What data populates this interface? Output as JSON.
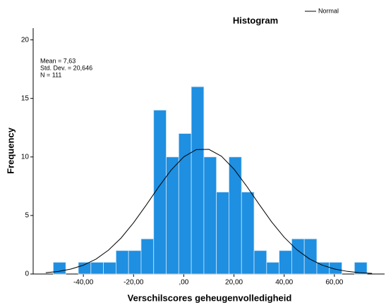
{
  "chart_data": {
    "type": "histogram",
    "title": "Histogram",
    "xlabel": "Verschilscores geheugenvolledigheid",
    "ylabel": "Frequency",
    "bins": [
      -52,
      -47,
      -42,
      -37,
      -32,
      -27,
      -22,
      -17,
      -12,
      -7,
      -2,
      3,
      8,
      13,
      18,
      23,
      28,
      33,
      38,
      43,
      48,
      53,
      58,
      63,
      68,
      73
    ],
    "counts": [
      1,
      0,
      1,
      1,
      1,
      2,
      2,
      3,
      14,
      10,
      12,
      16,
      10,
      7,
      10,
      7,
      2,
      1,
      2,
      3,
      3,
      1,
      1,
      0,
      1
    ],
    "color": "#1e8fe1",
    "normal_curve": {
      "name": "Normal",
      "color": "#000000",
      "x": [
        -55,
        -50,
        -45,
        -40,
        -35,
        -30,
        -25,
        -20,
        -15,
        -10,
        -5,
        0,
        5,
        10,
        15,
        20,
        25,
        30,
        35,
        40,
        45,
        50,
        55,
        60,
        65,
        70,
        75
      ],
      "values": [
        0.11,
        0.22,
        0.42,
        0.75,
        1.27,
        2.04,
        3.07,
        4.38,
        5.88,
        7.44,
        8.89,
        10.01,
        10.63,
        10.65,
        10.06,
        8.96,
        7.52,
        5.96,
        4.45,
        3.14,
        2.08,
        1.3,
        0.77,
        0.43,
        0.23,
        0.11,
        0.05
      ]
    },
    "annotations": [
      "Mean = 7,63",
      "Std. Dev. = 20,646",
      "N = 111"
    ],
    "xlim": [
      -60,
      80
    ],
    "ylim": [
      0,
      21
    ],
    "xticks": [
      {
        "value": -40,
        "label": "-40,00"
      },
      {
        "value": -20,
        "label": "-20,00"
      },
      {
        "value": 0,
        "label": ",00"
      },
      {
        "value": 20,
        "label": "20,00"
      },
      {
        "value": 40,
        "label": "40,00"
      },
      {
        "value": 60,
        "label": "60,00"
      }
    ],
    "yticks": [
      0,
      5,
      10,
      15,
      20
    ],
    "legend": "top-right"
  }
}
